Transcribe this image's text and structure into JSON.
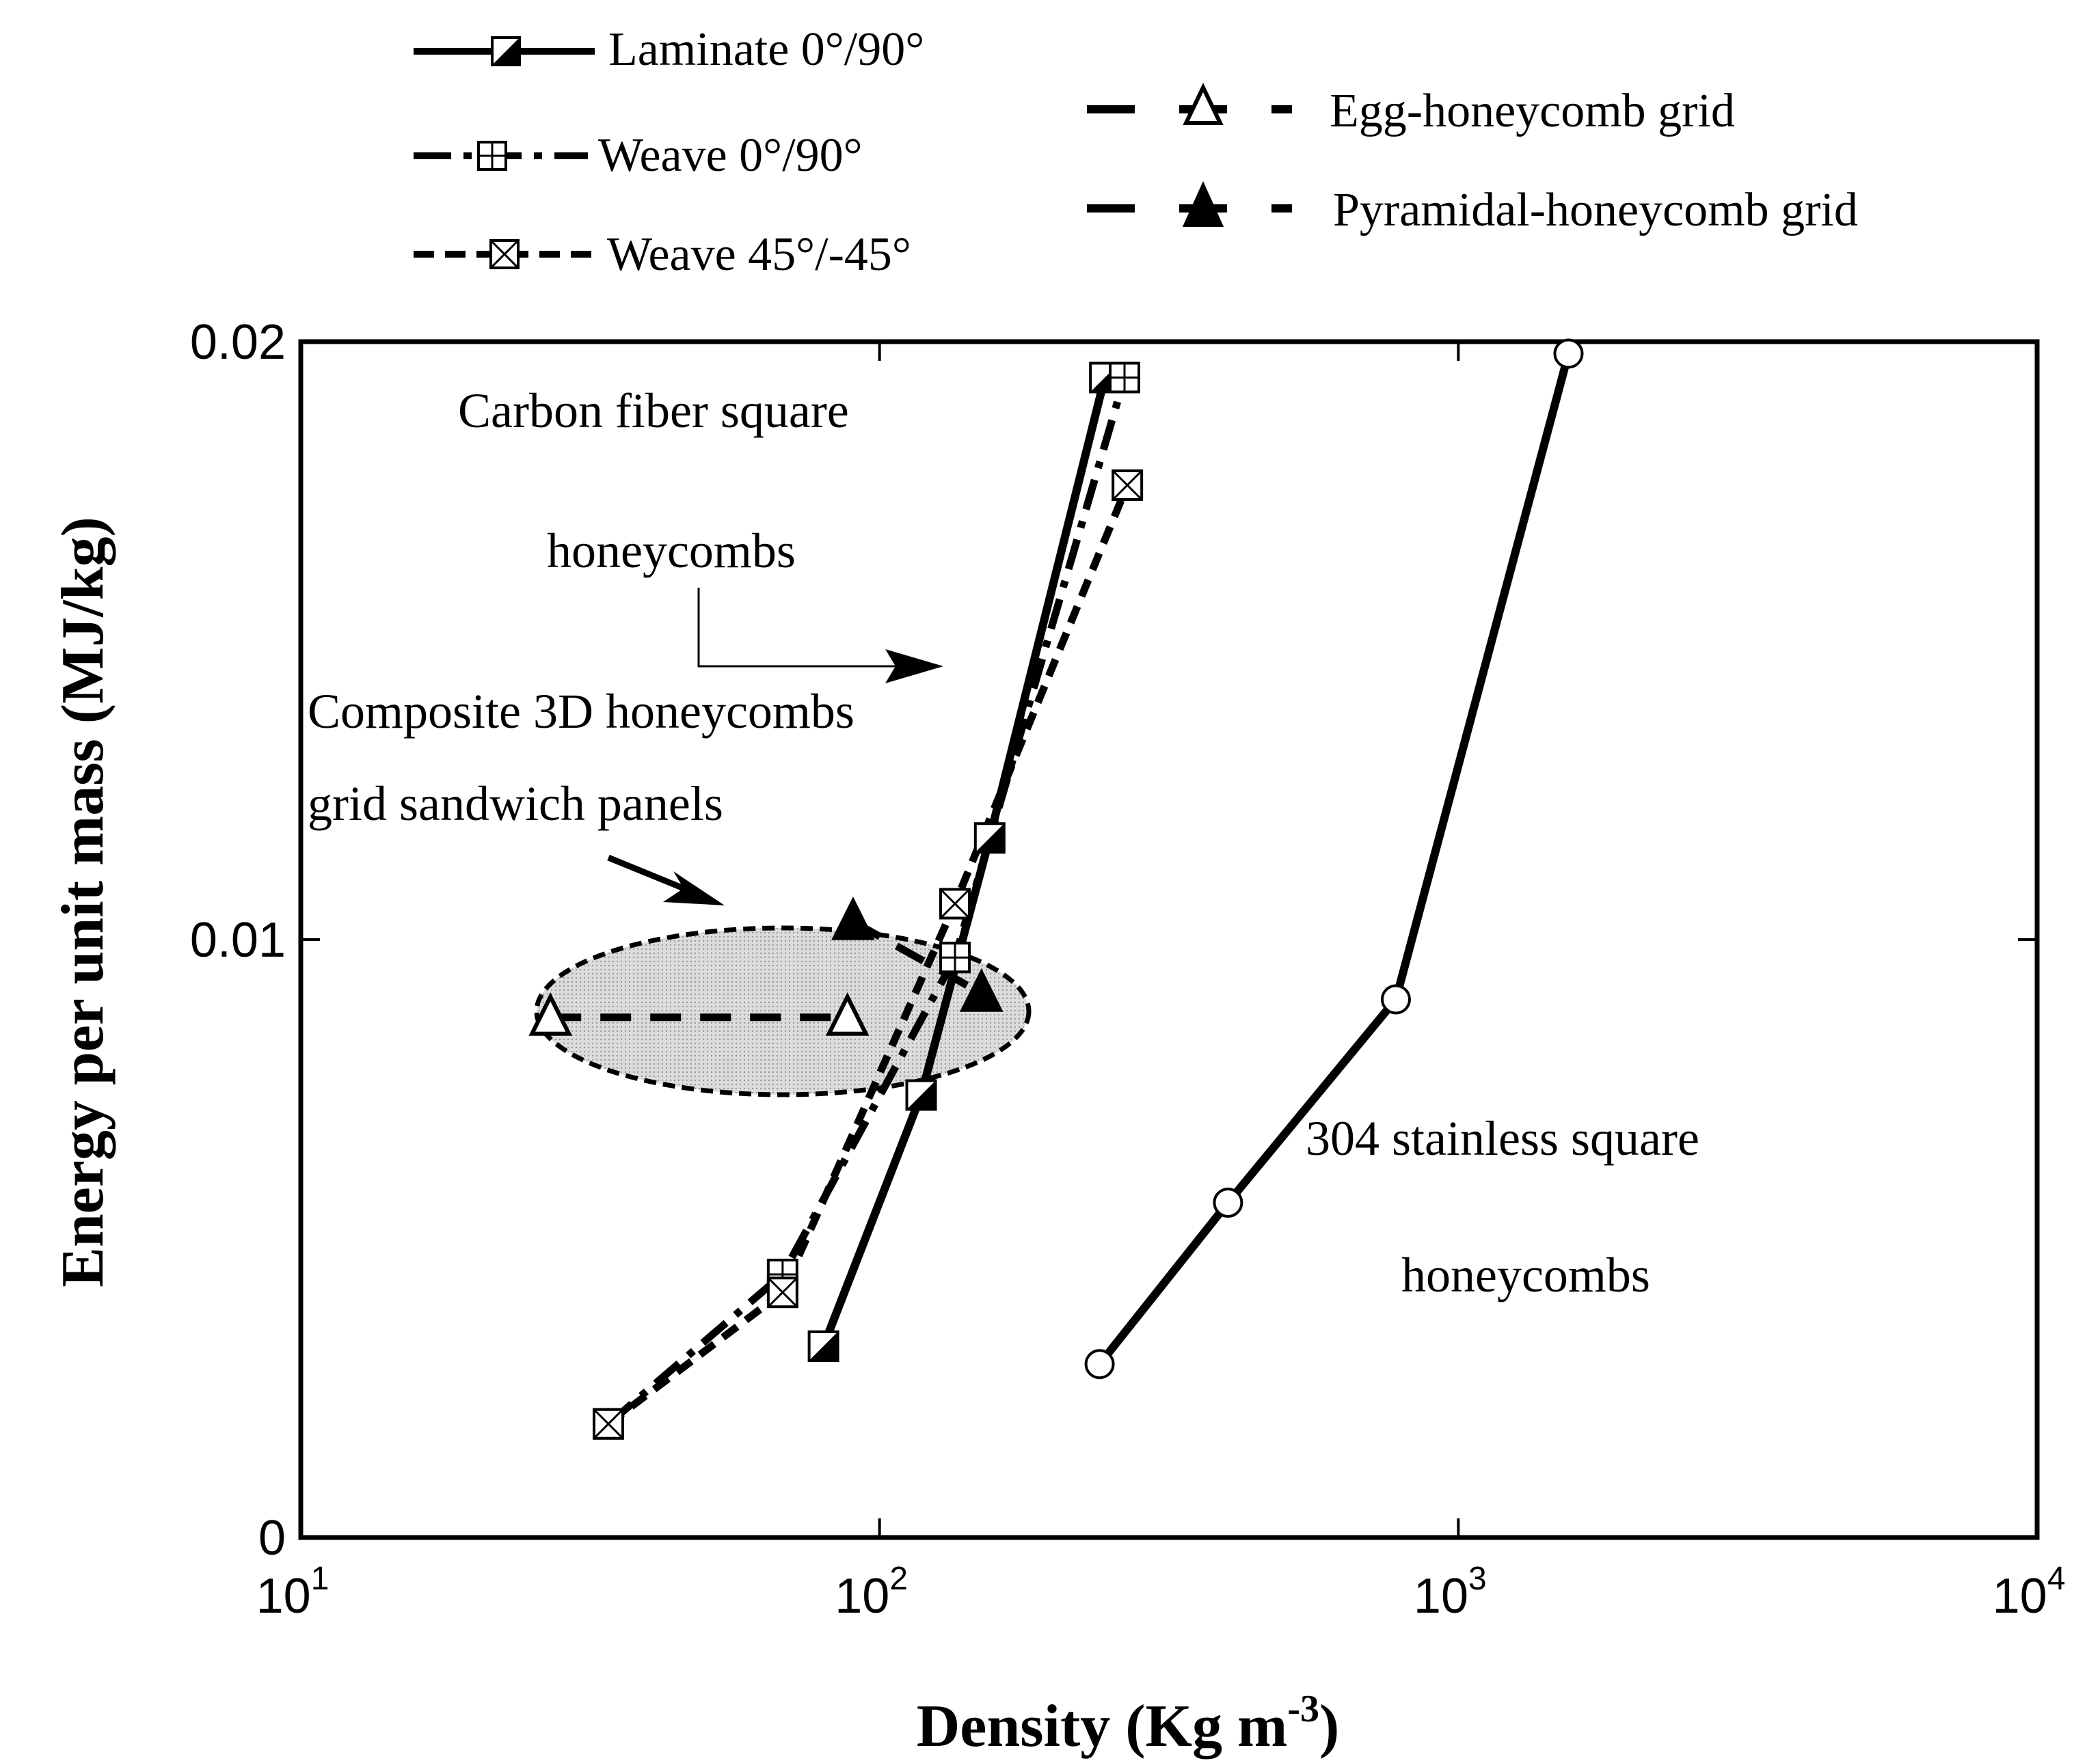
{
  "chart_data": {
    "type": "line",
    "xscale": "log",
    "xlim": [
      10,
      10000
    ],
    "ylim": [
      0,
      0.02
    ],
    "xlabel": {
      "main": "Density (Kg m",
      "sup": "-3",
      "close": ")"
    },
    "ylabel": "Energy per unit mass (MJ/kg)",
    "x_ticks": [
      {
        "value": 10,
        "base": "10",
        "exp": "1"
      },
      {
        "value": 100,
        "base": "10",
        "exp": "2"
      },
      {
        "value": 1000,
        "base": "10",
        "exp": "3"
      },
      {
        "value": 10000,
        "base": "10",
        "exp": "4"
      }
    ],
    "y_ticks": [
      {
        "value": 0,
        "label": "0"
      },
      {
        "value": 0.01,
        "label": "0.01"
      },
      {
        "value": 0.02,
        "label": "0.02"
      }
    ],
    "series": [
      {
        "id": "laminate",
        "name": "Laminate 0°/90°",
        "style": "solid",
        "marker": "half-square",
        "in_legend": true,
        "x": [
          80,
          118,
          155,
          245
        ],
        "y": [
          0.0032,
          0.0074,
          0.0117,
          0.0194
        ]
      },
      {
        "id": "weave090",
        "name": "Weave 0°/90°",
        "style": "dashdot",
        "marker": "plus-square",
        "in_legend": true,
        "x": [
          34,
          68,
          135,
          265
        ],
        "y": [
          0.0019,
          0.0044,
          0.0097,
          0.0194
        ]
      },
      {
        "id": "weave45",
        "name": "Weave 45°/-45°",
        "style": "dashed",
        "marker": "x-square",
        "in_legend": true,
        "x": [
          34,
          68,
          135,
          268
        ],
        "y": [
          0.0019,
          0.0041,
          0.0106,
          0.0176
        ]
      },
      {
        "id": "egg",
        "name": "Egg-honeycomb grid",
        "style": "longdash",
        "marker": "open-triangle",
        "in_legend": true,
        "x": [
          27,
          88
        ],
        "y": [
          0.0087,
          0.0087
        ]
      },
      {
        "id": "pyramidal",
        "name": "Pyramidal-honeycomb grid",
        "style": "longdash",
        "marker": "filled-triangle",
        "in_legend": true,
        "x": [
          90,
          150
        ],
        "y": [
          0.0103,
          0.0091
        ]
      },
      {
        "id": "stainless",
        "name": "304 stainless square honeycombs",
        "style": "solid",
        "marker": "circle",
        "in_legend": false,
        "x": [
          240,
          400,
          780,
          1550
        ],
        "y": [
          0.0029,
          0.0056,
          0.009,
          0.0198
        ]
      }
    ],
    "annotations": [
      {
        "id": "carbon-1",
        "text": "Carbon fiber square"
      },
      {
        "id": "carbon-2",
        "text": "honeycombs"
      },
      {
        "id": "comp-1",
        "text": "Composite 3D honeycombs"
      },
      {
        "id": "comp-2",
        "text": "grid sandwich panels"
      },
      {
        "id": "stainless-1",
        "text": "304 stainless square"
      },
      {
        "id": "stainless-2",
        "text": "honeycombs"
      }
    ],
    "grid": false,
    "legend_position": "top"
  }
}
